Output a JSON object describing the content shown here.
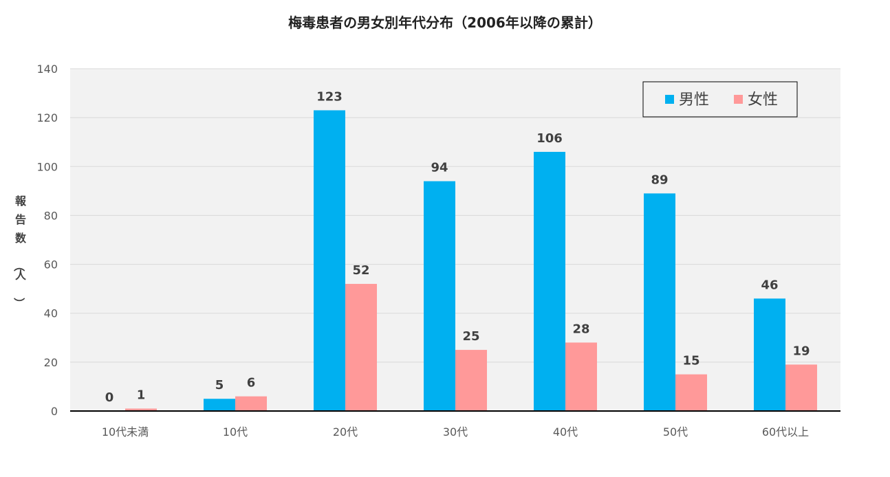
{
  "chart_data": {
    "type": "bar",
    "title": "梅毒患者の男女別年代分布（2006年以降の累計）",
    "ylabel": "報告数（人）",
    "xlabel": "",
    "categories": [
      "10代未満",
      "10代",
      "20代",
      "30代",
      "40代",
      "50代",
      "60代以上"
    ],
    "series": [
      {
        "name": "男性",
        "color": "#00b0f0",
        "values": [
          0,
          5,
          123,
          94,
          106,
          89,
          46
        ]
      },
      {
        "name": "女性",
        "color": "#ff9999",
        "values": [
          1,
          6,
          52,
          25,
          28,
          15,
          19
        ]
      }
    ],
    "ylim": [
      0,
      140
    ],
    "yticks": [
      "0",
      "20",
      "40",
      "60",
      "80",
      "100",
      "120",
      "140"
    ],
    "grid": true,
    "legend_position": "top-right",
    "plot_background": "#f2f2f2"
  }
}
